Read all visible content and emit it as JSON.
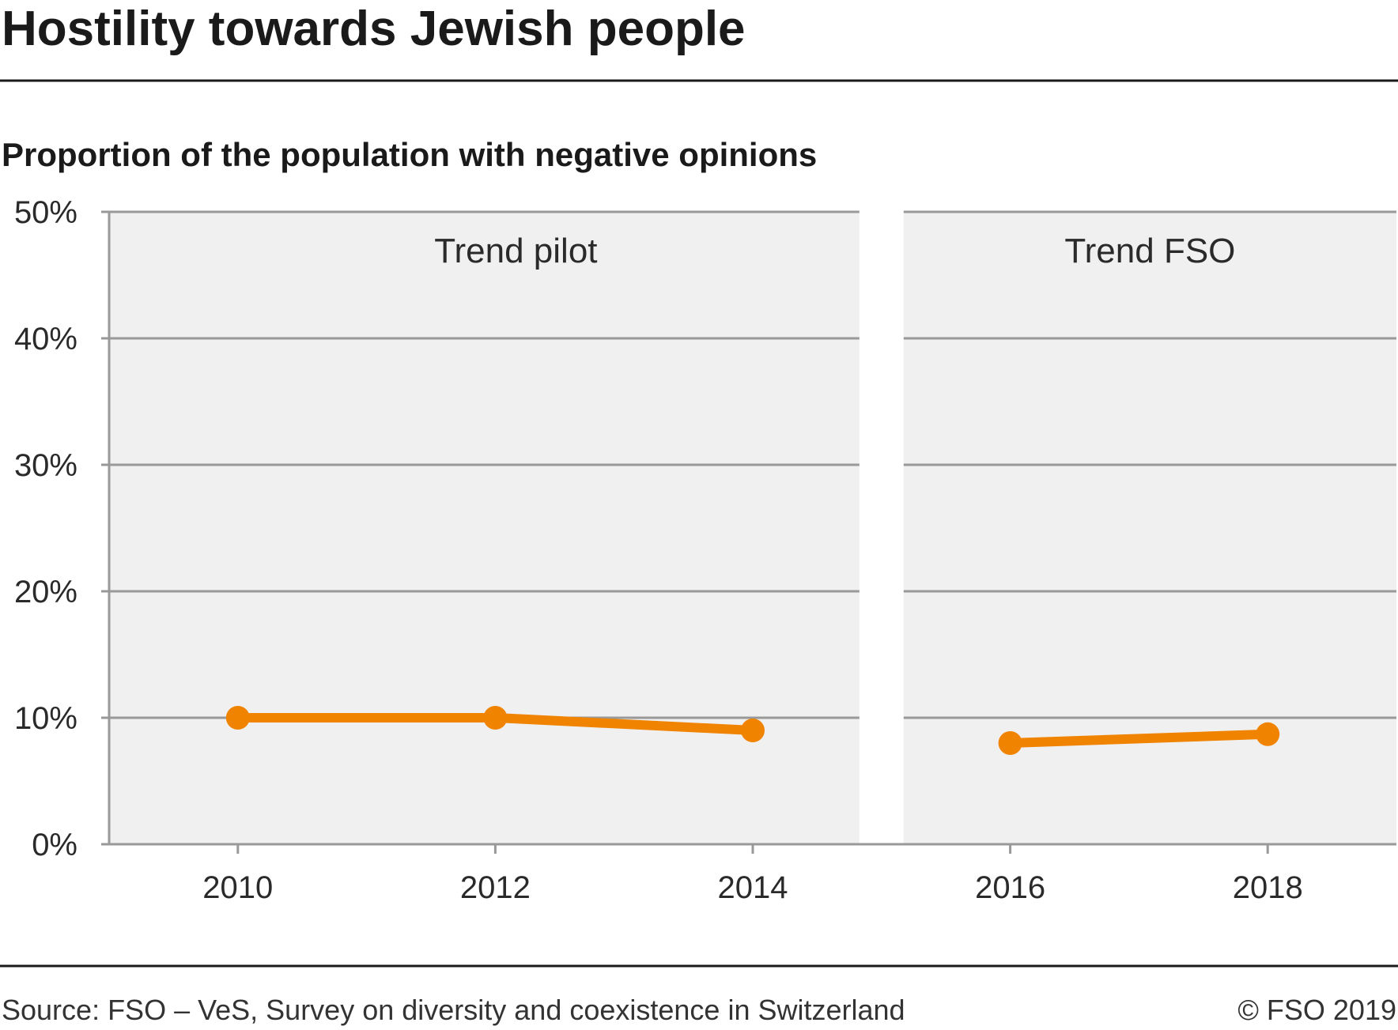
{
  "title": "Hostility towards Jewish people",
  "subtitle": "Proportion of the population with negative opinions",
  "source": "Source: FSO – VeS, Survey on diversity and coexistence in Switzerland",
  "copyright": "© FSO 2019",
  "colors": {
    "series": "#f08300",
    "panel": "#f0f0f0",
    "grid": "#999999",
    "rule": "#1a1a1a"
  },
  "chart_data": {
    "type": "line",
    "title": "Hostility towards Jewish people",
    "subtitle": "Proportion of the population with negative opinions",
    "xlabel": "",
    "ylabel": "",
    "ylim": [
      0,
      50
    ],
    "y_ticks": [
      0,
      10,
      20,
      30,
      40,
      50
    ],
    "y_tick_labels": [
      "0%",
      "10%",
      "20%",
      "30%",
      "40%",
      "50%"
    ],
    "x_ticks": [
      2010,
      2012,
      2014,
      2016,
      2018
    ],
    "xlim": [
      2009,
      2019
    ],
    "grid": true,
    "legend": "none",
    "periods": [
      {
        "label": "Trend pilot",
        "x_range": [
          2009,
          2015
        ]
      },
      {
        "label": "Trend FSO",
        "x_range": [
          2015,
          2019
        ]
      }
    ],
    "series": [
      {
        "segments": [
          [
            {
              "x": 2010,
              "y": 10.0
            },
            {
              "x": 2012,
              "y": 10.0
            },
            {
              "x": 2014,
              "y": 9.0
            }
          ],
          [
            {
              "x": 2016,
              "y": 8.0
            },
            {
              "x": 2018,
              "y": 8.7
            }
          ]
        ]
      }
    ]
  }
}
